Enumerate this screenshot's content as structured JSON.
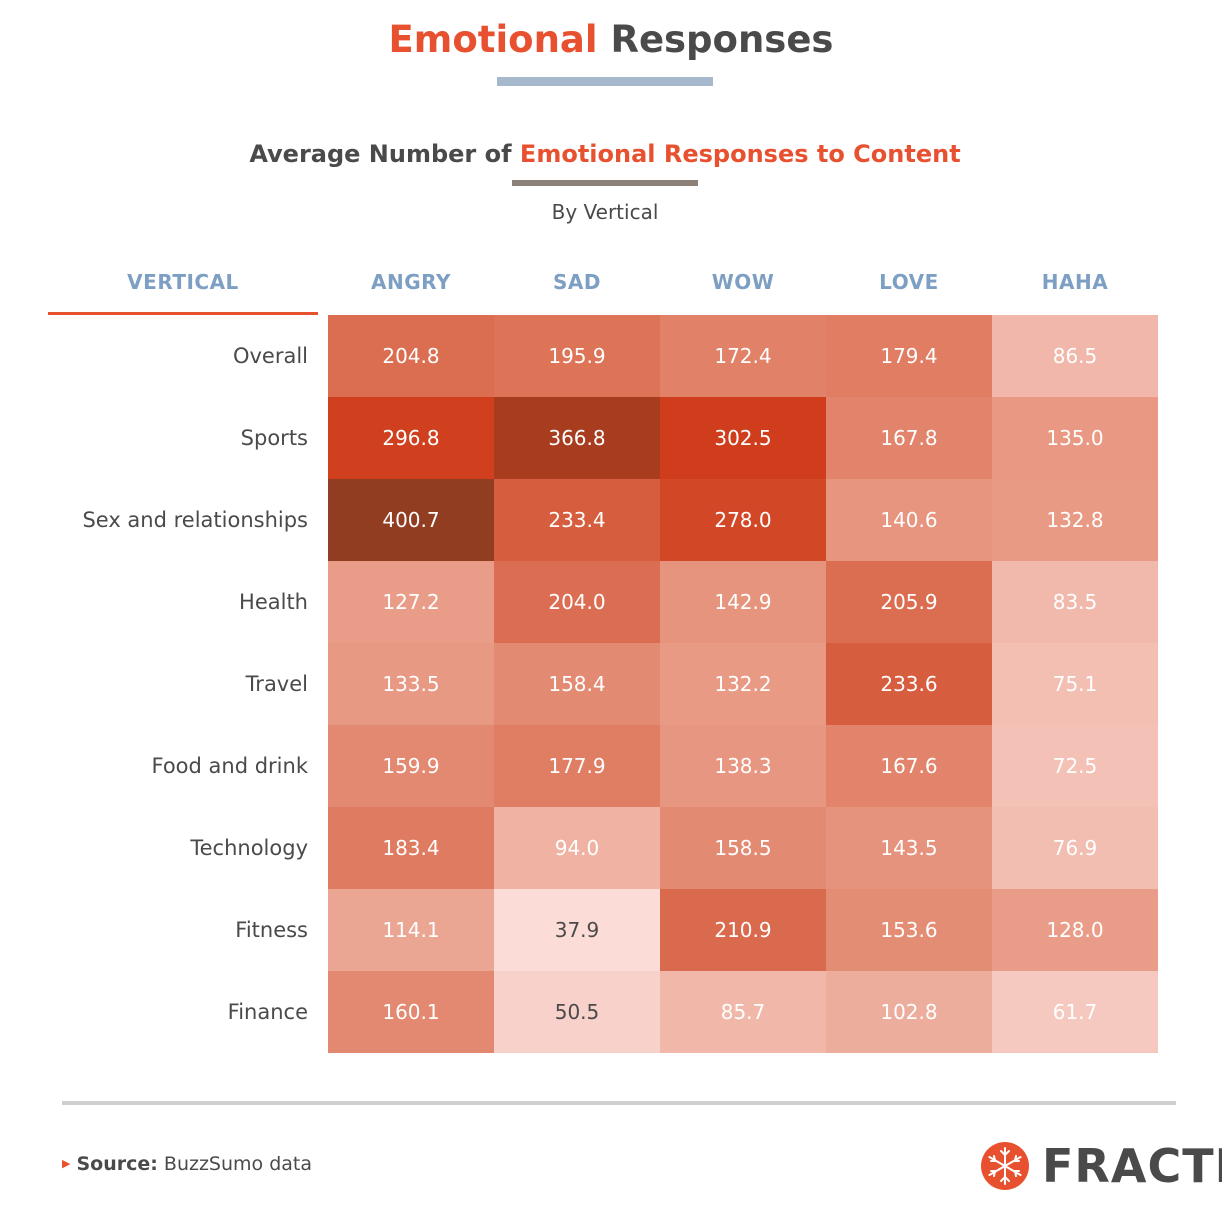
{
  "header": {
    "title_highlight": "Emotional",
    "title_rest": "Responses",
    "subtitle_lead": "Average Number of",
    "subtitle_highlight": "Emotional Responses to Content",
    "byline": "By Vertical"
  },
  "colors": {
    "accent": "#e8512f",
    "header_text": "#7d9fc3",
    "low": "#fde4e1",
    "high": "#8e3b1e"
  },
  "chart_data": {
    "type": "heatmap",
    "title": "Average Number of Emotional Responses to Content",
    "subtitle": "By Vertical",
    "row_header": "VERTICAL",
    "columns": [
      "ANGRY",
      "SAD",
      "WOW",
      "LOVE",
      "HAHA"
    ],
    "rows": [
      "Overall",
      "Sports",
      "Sex and relationships",
      "Health",
      "Travel",
      "Food and drink",
      "Technology",
      "Fitness",
      "Finance"
    ],
    "values": [
      [
        "204.8",
        "195.9",
        "172.4",
        "179.4",
        "86.5"
      ],
      [
        "296.8",
        "366.8",
        "302.5",
        "167.8",
        "135.0"
      ],
      [
        "400.7",
        "233.4",
        "278.0",
        "140.6",
        "132.8"
      ],
      [
        "127.2",
        "204.0",
        "142.9",
        "205.9",
        "83.5"
      ],
      [
        "133.5",
        "158.4",
        "132.2",
        "233.6",
        "75.1"
      ],
      [
        "159.9",
        "177.9",
        "138.3",
        "167.6",
        "72.5"
      ],
      [
        "183.4",
        "94.0",
        "158.5",
        "143.5",
        "76.9"
      ],
      [
        "114.1",
        "37.9",
        "210.9",
        "153.6",
        "128.0"
      ],
      [
        "160.1",
        "50.5",
        "85.7",
        "102.8",
        "61.7"
      ]
    ]
  },
  "footer": {
    "source_label": "Source:",
    "source_text": "BuzzSumo data",
    "logo_text": "FRACTL"
  }
}
